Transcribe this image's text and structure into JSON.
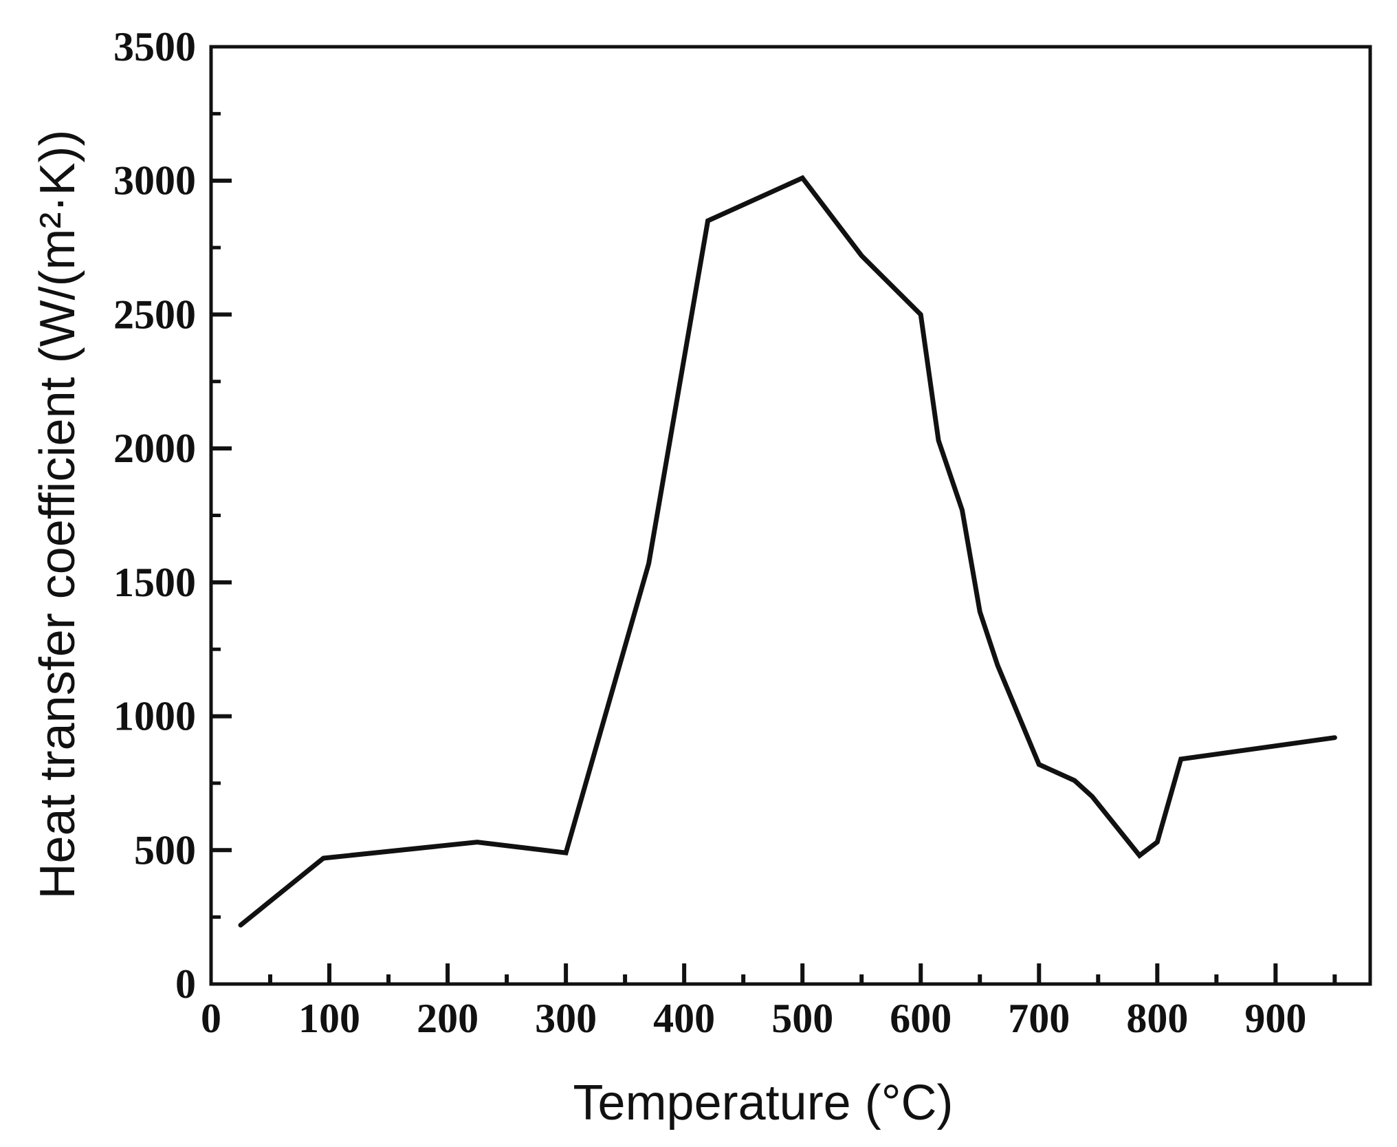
{
  "chart_data": {
    "type": "line",
    "title": "",
    "xlabel": "Temperature (°C)",
    "ylabel": "Heat transfer coefficient (W/(m²·K))",
    "xlim": [
      0,
      980
    ],
    "ylim": [
      0,
      3500
    ],
    "grid": false,
    "legend": "none",
    "x_ticks": [
      0,
      100,
      200,
      300,
      400,
      500,
      600,
      700,
      800,
      900
    ],
    "x_tick_labels": [
      "0",
      "100",
      "200",
      "300",
      "400",
      "500",
      "600",
      "700",
      "800",
      "900"
    ],
    "y_ticks": [
      0,
      500,
      1000,
      1500,
      2000,
      2500,
      3000,
      3500
    ],
    "y_tick_labels": [
      "0",
      "500",
      "1000",
      "1500",
      "2000",
      "2500",
      "3000",
      "3500"
    ],
    "series": [
      {
        "x": [
          25,
          95,
          225,
          300,
          370,
          420,
          500,
          550,
          600,
          615,
          635,
          650,
          665,
          700,
          730,
          745,
          785,
          800,
          820,
          950
        ],
        "y": [
          220,
          470,
          530,
          490,
          1570,
          2850,
          3010,
          2720,
          2500,
          2030,
          1770,
          1390,
          1190,
          820,
          760,
          700,
          480,
          530,
          840,
          920
        ]
      }
    ]
  },
  "colors": {
    "line": "#111111",
    "axes": "#111111",
    "background": "#ffffff"
  }
}
